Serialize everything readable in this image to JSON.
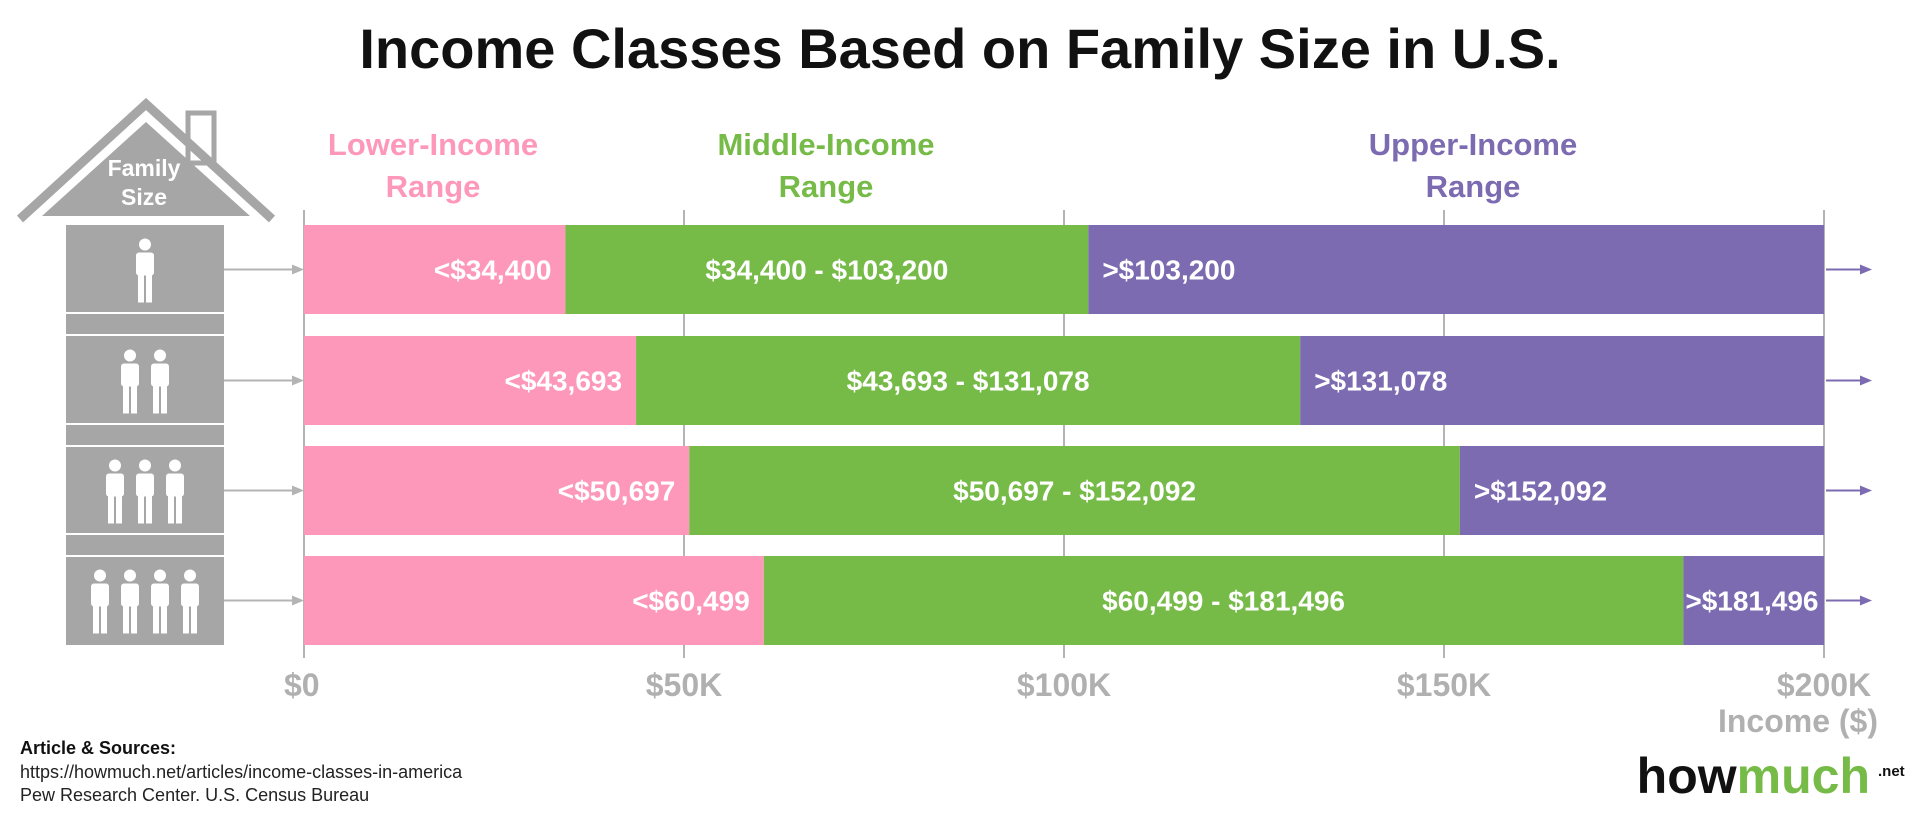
{
  "title": "Income Classes Based on Family Size in U.S.",
  "legend": {
    "lower": [
      "Lower-Income",
      "Range"
    ],
    "middle": [
      "Middle-Income",
      "Range"
    ],
    "upper": [
      "Upper-Income",
      "Range"
    ]
  },
  "house_label": [
    "Family",
    "Size"
  ],
  "sources": {
    "heading": "Article & Sources:",
    "lines": [
      "https://howmuch.net/articles/income-classes-in-america",
      "Pew Research Center. U.S. Census Bureau"
    ]
  },
  "logo": {
    "part1": "how",
    "part2": "much",
    "suffix": ".net"
  },
  "colors": {
    "lower": "#fd98bb",
    "middle": "#76bb47",
    "upper": "#7c6bb1",
    "grid": "#b4b4b4",
    "tile": "#a6a6a6",
    "axis_text": "#b0b0b0",
    "logo_dark": "#111111",
    "logo_green": "#76bb47"
  },
  "chart_data": {
    "type": "bar",
    "orientation": "horizontal",
    "stacked": true,
    "title": "Income Classes Based on Family Size in U.S.",
    "xlabel": "Income ($)",
    "ylabel": "Family Size",
    "xlim": [
      0,
      200000
    ],
    "ticks": [
      {
        "value": 0,
        "label": "$0"
      },
      {
        "value": 50000,
        "label": "$50K"
      },
      {
        "value": 100000,
        "label": "$100K"
      },
      {
        "value": 150000,
        "label": "$150K"
      },
      {
        "value": 200000,
        "label": "$200K"
      }
    ],
    "categories": [
      1,
      2,
      3,
      4
    ],
    "series": [
      {
        "name": "Lower-Income Range",
        "key": "lower"
      },
      {
        "name": "Middle-Income Range",
        "key": "middle"
      },
      {
        "name": "Upper-Income Range",
        "key": "upper"
      }
    ],
    "rows": [
      {
        "family_size": 1,
        "lower_max": 34400,
        "upper_min": 103200,
        "labels": {
          "lower": "<$34,400",
          "middle": "$34,400 - $103,200",
          "upper": ">$103,200"
        }
      },
      {
        "family_size": 2,
        "lower_max": 43693,
        "upper_min": 131078,
        "labels": {
          "lower": "<$43,693",
          "middle": "$43,693 - $131,078",
          "upper": ">$131,078"
        }
      },
      {
        "family_size": 3,
        "lower_max": 50697,
        "upper_min": 152092,
        "labels": {
          "lower": "<$50,697",
          "middle": "$50,697 - $152,092",
          "upper": ">$152,092"
        }
      },
      {
        "family_size": 4,
        "lower_max": 60499,
        "upper_min": 181496,
        "labels": {
          "lower": "<$60,499",
          "middle": "$60,499 - $181,496",
          "upper": ">$181,496"
        }
      }
    ]
  }
}
